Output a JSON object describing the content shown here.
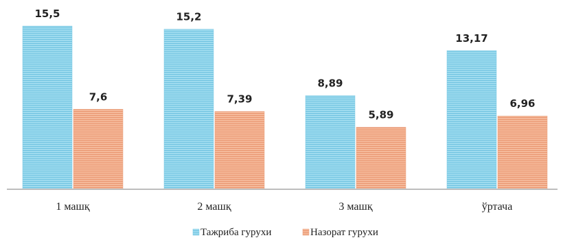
{
  "chart_data": {
    "type": "bar",
    "categories": [
      "1 машқ",
      "2 машқ",
      "3 машқ",
      "ўртача"
    ],
    "series": [
      {
        "name": "Тажриба гурухи",
        "values": [
          15.5,
          15.2,
          8.89,
          13.17
        ],
        "labels": [
          "15,5",
          "15,2",
          "8,89",
          "13,17"
        ],
        "color": "#8fd6ea"
      },
      {
        "name": "Назорат гурухи",
        "values": [
          7.6,
          7.39,
          5.89,
          6.96
        ],
        "labels": [
          "7,6",
          "7,39",
          "5,89",
          "6,96"
        ],
        "color": "#f2ad8c"
      }
    ],
    "ylim": [
      0,
      16
    ],
    "grid": false,
    "legend_position": "bottom"
  }
}
